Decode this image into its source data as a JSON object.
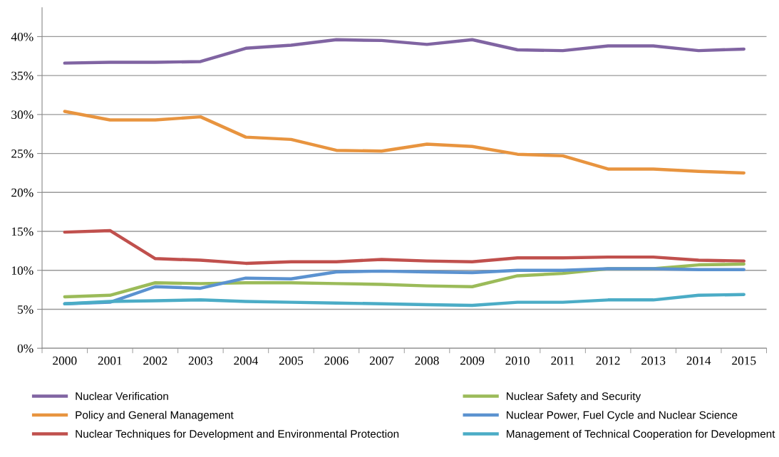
{
  "chart_data": {
    "type": "line",
    "categories": [
      "2000",
      "2001",
      "2002",
      "2003",
      "2004",
      "2005",
      "2006",
      "2007",
      "2008",
      "2009",
      "2010",
      "2011",
      "2012",
      "2013",
      "2014",
      "2015"
    ],
    "series": [
      {
        "name": "Nuclear Verification",
        "color": "#8064a2",
        "values": [
          36.6,
          36.7,
          36.7,
          36.8,
          38.5,
          38.9,
          39.6,
          39.5,
          39.0,
          39.6,
          38.3,
          38.2,
          38.8,
          38.8,
          38.2,
          38.4
        ]
      },
      {
        "name": "Policy and General Management",
        "color": "#e8943f",
        "values": [
          30.4,
          29.3,
          29.3,
          29.7,
          27.1,
          26.8,
          25.4,
          25.3,
          26.2,
          25.9,
          24.9,
          24.7,
          23.0,
          23.0,
          22.7,
          22.5
        ]
      },
      {
        "name": "Nuclear Techniques for Development and Environmental Protection",
        "color": "#c0504d",
        "values": [
          14.9,
          15.1,
          11.5,
          11.3,
          10.9,
          11.1,
          11.1,
          11.4,
          11.2,
          11.1,
          11.6,
          11.6,
          11.7,
          11.7,
          11.3,
          11.2
        ]
      },
      {
        "name": "Nuclear Safety and Security",
        "color": "#9bbb59",
        "values": [
          6.6,
          6.8,
          8.4,
          8.3,
          8.4,
          8.4,
          8.3,
          8.2,
          8.0,
          7.9,
          9.3,
          9.6,
          10.2,
          10.2,
          10.7,
          10.8
        ]
      },
      {
        "name": "Nuclear Power, Fuel Cycle and Nuclear Science",
        "color": "#5b92d0",
        "values": [
          5.7,
          5.9,
          7.9,
          7.7,
          9.0,
          8.9,
          9.8,
          9.9,
          9.8,
          9.7,
          10.0,
          10.0,
          10.2,
          10.2,
          10.1,
          10.1
        ]
      },
      {
        "name": "Management of Technical Cooperation for Development",
        "color": "#4bacc6",
        "values": [
          5.7,
          6.0,
          6.1,
          6.2,
          6.0,
          5.9,
          5.8,
          5.7,
          5.6,
          5.5,
          5.9,
          5.9,
          6.2,
          6.2,
          6.8,
          6.9
        ]
      }
    ],
    "ylim": [
      0,
      43.7
    ],
    "yticks": [
      {
        "value": 0,
        "label": "0%"
      },
      {
        "value": 5,
        "label": "5%"
      },
      {
        "value": 10,
        "label": "10%"
      },
      {
        "value": 15,
        "label": "15%"
      },
      {
        "value": 20,
        "label": "20%"
      },
      {
        "value": 25,
        "label": "25%"
      },
      {
        "value": 30,
        "label": "30%"
      },
      {
        "value": 35,
        "label": "35%"
      },
      {
        "value": 40,
        "label": "40%"
      }
    ],
    "grid": "y",
    "legend": "bottom",
    "marker": "none",
    "line_style": "solid"
  }
}
